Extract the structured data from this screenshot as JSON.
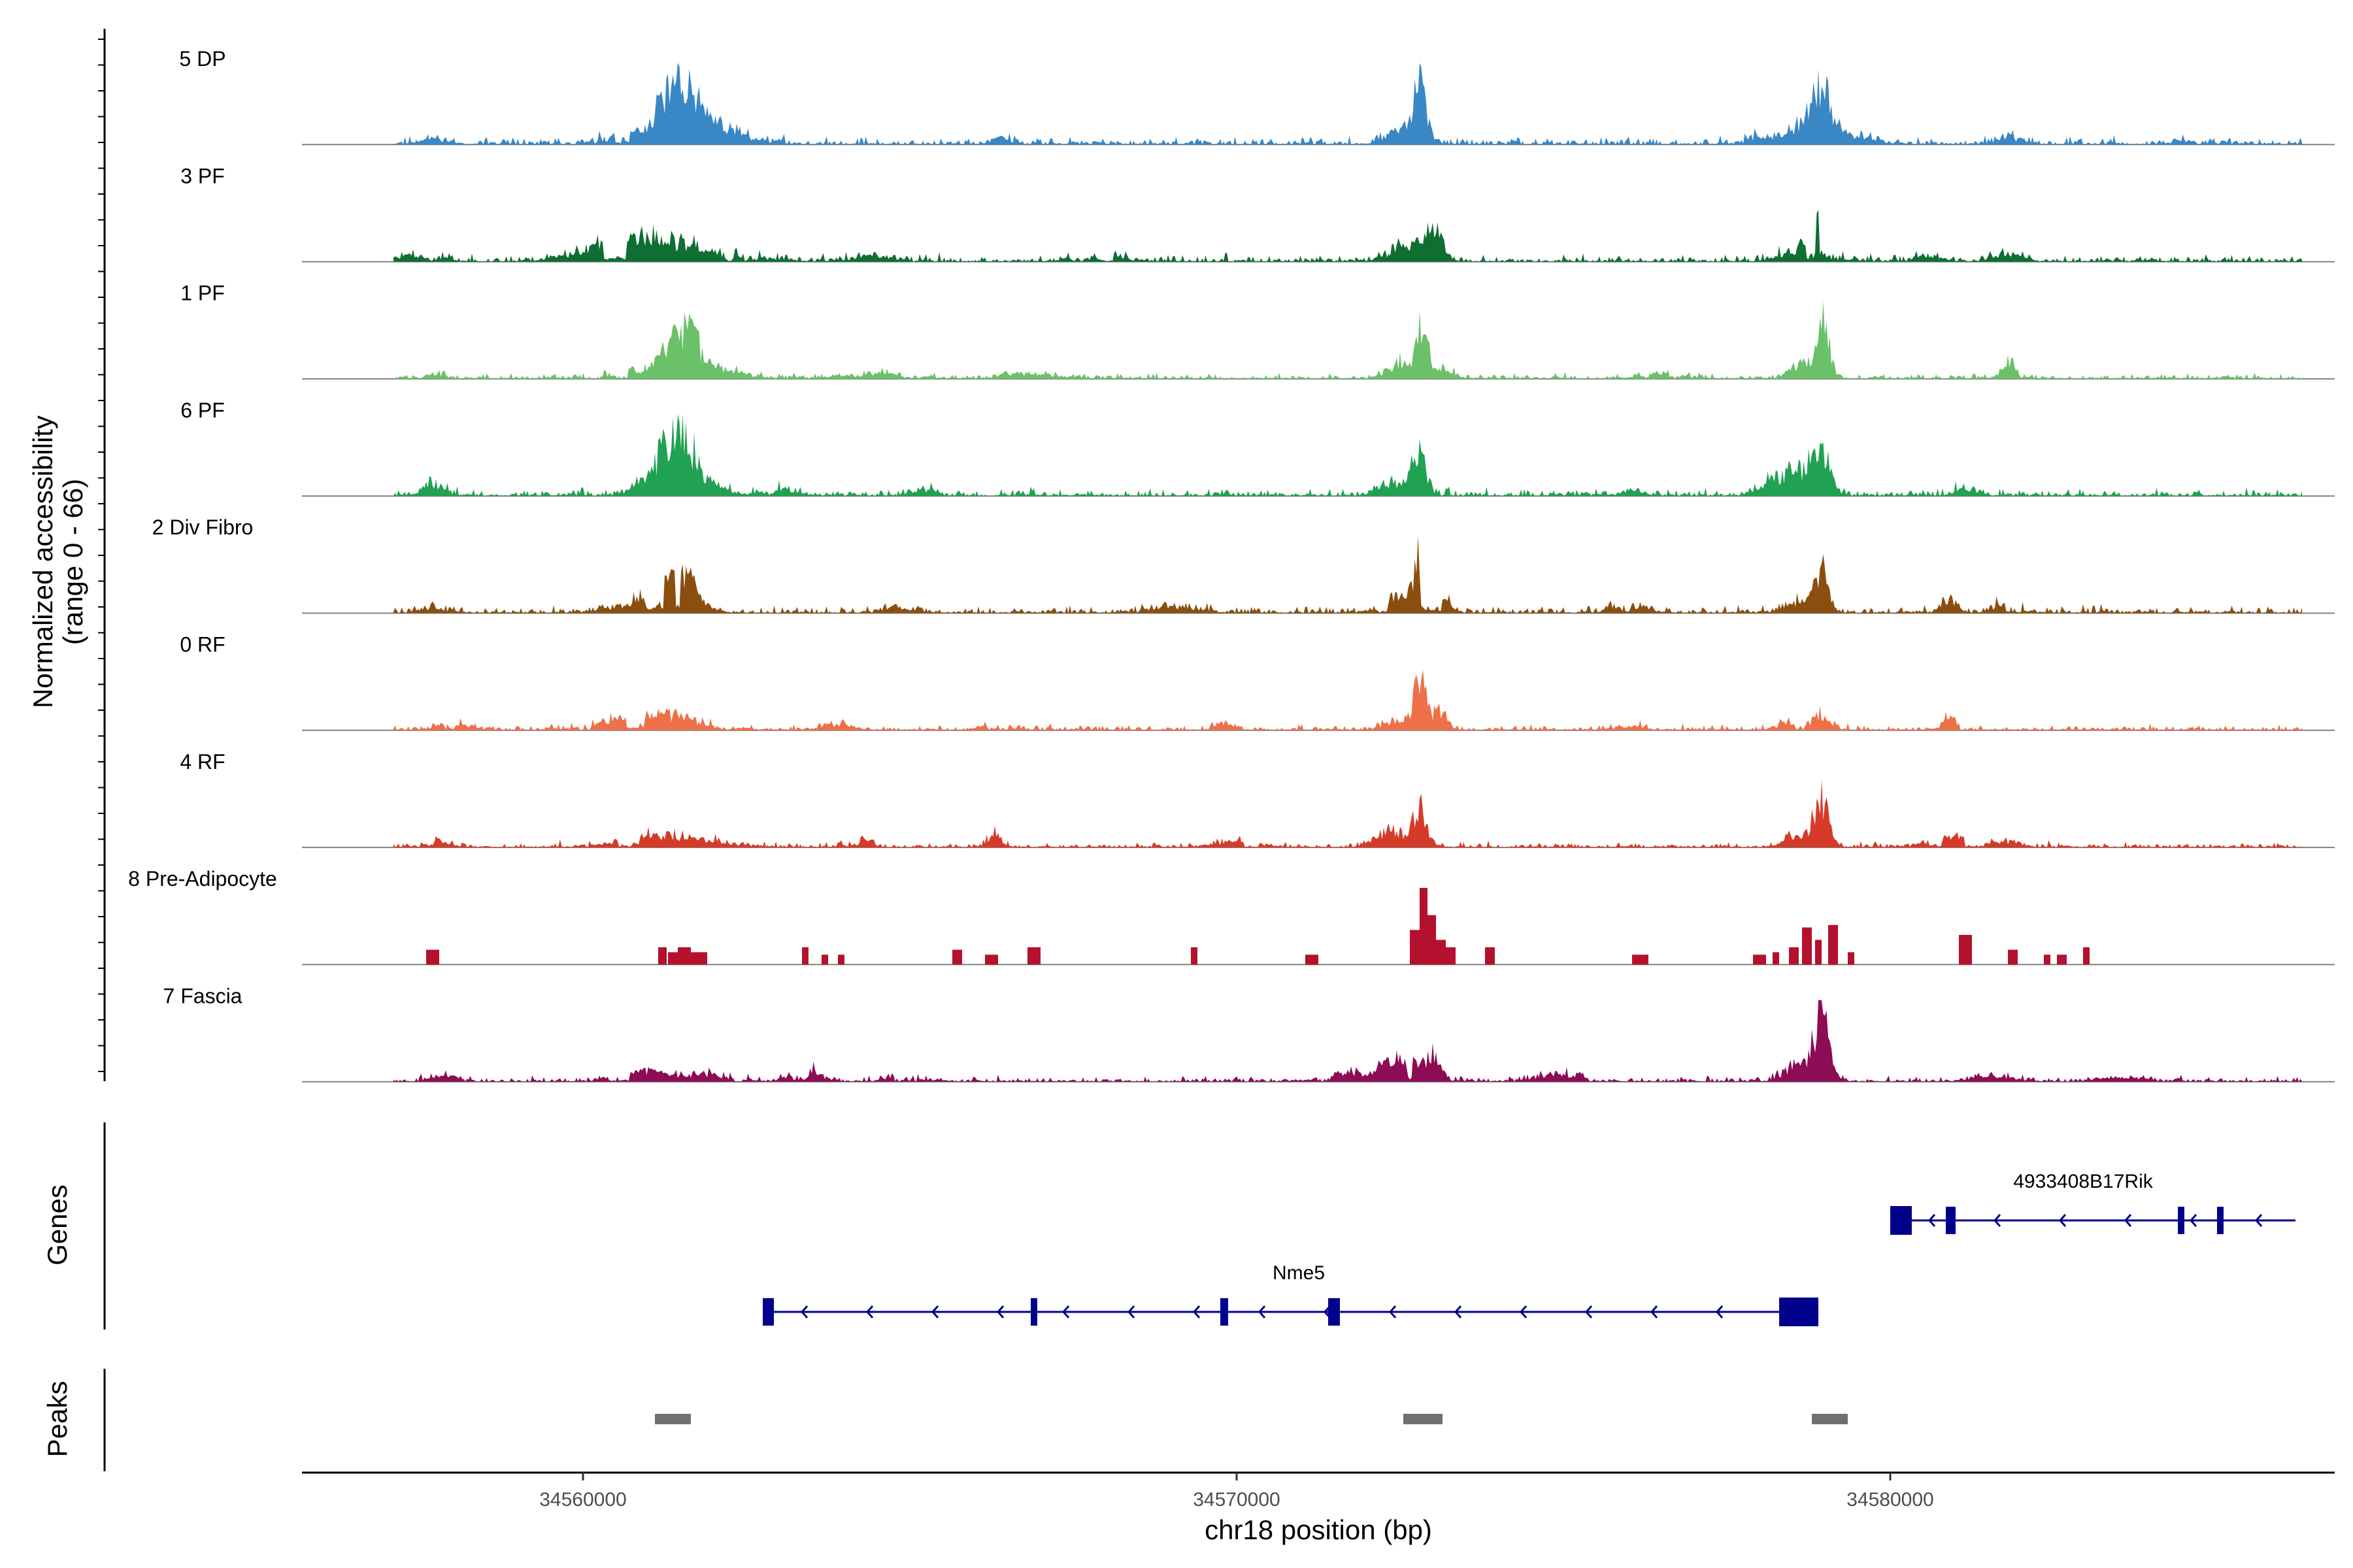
{
  "chart_data": {
    "type": "area",
    "title": "",
    "y_axis_title_line1": "Normalized accessibility",
    "y_axis_title_line2": "(range 0 - 66)",
    "ylim": [
      0,
      66
    ],
    "x_axis_title": "chr18 position (bp)",
    "xlim": [
      34555700,
      34586800
    ],
    "x_ticks": [
      34560000,
      34570000,
      34580000
    ],
    "x_tick_labels": [
      "34560000",
      "34570000",
      "34580000"
    ],
    "genes_track_label": "Genes",
    "peaks_track_label": "Peaks",
    "tracks": [
      {
        "name": "5 DP",
        "color": "#3A87C5",
        "start": 34557100,
        "end": 34586300,
        "noise": 4,
        "seed": 11,
        "peaks": [
          [
            34561450,
            42,
            260
          ],
          [
            34561900,
            14,
            500
          ],
          [
            34560700,
            5,
            300
          ],
          [
            34572800,
            46,
            110
          ],
          [
            34572450,
            9,
            200
          ],
          [
            34578950,
            36,
            150
          ],
          [
            34578650,
            12,
            300
          ],
          [
            34579500,
            6,
            300
          ],
          [
            34566300,
            6,
            180
          ],
          [
            34557700,
            4,
            200
          ],
          [
            34577900,
            5,
            200
          ],
          [
            34581800,
            4,
            200
          ],
          [
            34584500,
            3,
            200
          ]
        ]
      },
      {
        "name": "3 PF",
        "color": "#0F6E32",
        "start": 34557100,
        "end": 34586300,
        "noise": 4,
        "seed": 23,
        "peaks": [
          [
            34561200,
            14,
            800
          ],
          [
            34560500,
            6,
            500
          ],
          [
            34572600,
            12,
            250
          ],
          [
            34573000,
            26,
            130
          ],
          [
            34578950,
            32,
            120
          ],
          [
            34578700,
            10,
            300
          ],
          [
            34557500,
            5,
            300
          ],
          [
            34564500,
            4,
            300
          ],
          [
            34568000,
            3,
            300
          ],
          [
            34581800,
            6,
            200
          ],
          [
            34580600,
            4,
            200
          ]
        ]
      },
      {
        "name": "1 PF",
        "color": "#6BC06A",
        "start": 34557100,
        "end": 34586300,
        "noise": 3,
        "seed": 37,
        "peaks": [
          [
            34561550,
            30,
            220
          ],
          [
            34561200,
            8,
            500
          ],
          [
            34562000,
            6,
            400
          ],
          [
            34572850,
            40,
            90
          ],
          [
            34572500,
            12,
            180
          ],
          [
            34573200,
            8,
            120
          ],
          [
            34578980,
            40,
            90
          ],
          [
            34578700,
            12,
            200
          ],
          [
            34581850,
            12,
            120
          ],
          [
            34564500,
            4,
            500
          ],
          [
            34566700,
            4,
            400
          ],
          [
            34557600,
            4,
            200
          ],
          [
            34576500,
            4,
            300
          ]
        ]
      },
      {
        "name": "6 PF",
        "color": "#21A152",
        "start": 34557100,
        "end": 34586300,
        "noise": 4,
        "seed": 43,
        "peaks": [
          [
            34561450,
            40,
            200
          ],
          [
            34561200,
            16,
            300
          ],
          [
            34561800,
            10,
            300
          ],
          [
            34572800,
            28,
            100
          ],
          [
            34572400,
            10,
            250
          ],
          [
            34578950,
            32,
            130
          ],
          [
            34578600,
            16,
            250
          ],
          [
            34578200,
            8,
            200
          ],
          [
            34557700,
            9,
            150
          ],
          [
            34563000,
            4,
            300
          ],
          [
            34565200,
            5,
            200
          ],
          [
            34581100,
            6,
            200
          ],
          [
            34576000,
            4,
            200
          ]
        ]
      },
      {
        "name": "2 Div Fibro",
        "color": "#8A4F0F",
        "start": 34557100,
        "end": 34586300,
        "noise": 4,
        "seed": 59,
        "peaks": [
          [
            34561450,
            30,
            250
          ],
          [
            34561000,
            8,
            500
          ],
          [
            34572800,
            42,
            90
          ],
          [
            34572450,
            12,
            200
          ],
          [
            34573200,
            10,
            120
          ],
          [
            34578950,
            30,
            110
          ],
          [
            34578600,
            8,
            200
          ],
          [
            34580900,
            12,
            120
          ],
          [
            34581800,
            6,
            200
          ],
          [
            34569000,
            4,
            400
          ],
          [
            34564800,
            4,
            300
          ],
          [
            34557700,
            4,
            200
          ],
          [
            34576000,
            4,
            300
          ]
        ]
      },
      {
        "name": "0 RF",
        "color": "#EE7048",
        "start": 34557100,
        "end": 34586300,
        "noise": 3,
        "seed": 71,
        "peaks": [
          [
            34561100,
            12,
            600
          ],
          [
            34572800,
            46,
            90
          ],
          [
            34573100,
            14,
            120
          ],
          [
            34572400,
            6,
            200
          ],
          [
            34578950,
            12,
            120
          ],
          [
            34578500,
            6,
            200
          ],
          [
            34580900,
            10,
            100
          ],
          [
            34566300,
            6,
            200
          ],
          [
            34569800,
            6,
            150
          ],
          [
            34558000,
            4,
            300
          ],
          [
            34563900,
            4,
            200
          ],
          [
            34576000,
            3,
            200
          ]
        ]
      },
      {
        "name": "4 RF",
        "color": "#D63B2A",
        "start": 34557100,
        "end": 34586300,
        "noise": 3,
        "seed": 83,
        "peaks": [
          [
            34561300,
            9,
            600
          ],
          [
            34572800,
            32,
            110
          ],
          [
            34572350,
            14,
            200
          ],
          [
            34578950,
            34,
            110
          ],
          [
            34578600,
            10,
            200
          ],
          [
            34566300,
            10,
            100
          ],
          [
            34564200,
            8,
            150
          ],
          [
            34557700,
            6,
            200
          ],
          [
            34580900,
            8,
            300
          ],
          [
            34581800,
            4,
            200
          ],
          [
            34570000,
            4,
            300
          ]
        ]
      },
      {
        "name": "8 Pre-Adipocyte",
        "color": "#B3112D",
        "start": 34557100,
        "end": 34586300,
        "noise": 0,
        "seed": 97,
        "sparse": true,
        "blocks": [
          [
            34557600,
            34557800,
            12
          ],
          [
            34561150,
            34561280,
            14
          ],
          [
            34561300,
            34561450,
            10
          ],
          [
            34561450,
            34561650,
            14
          ],
          [
            34561650,
            34561900,
            10
          ],
          [
            34563350,
            34563450,
            14
          ],
          [
            34563650,
            34563750,
            8
          ],
          [
            34563900,
            34564000,
            8
          ],
          [
            34565650,
            34565800,
            12
          ],
          [
            34566150,
            34566350,
            8
          ],
          [
            34566800,
            34567000,
            14
          ],
          [
            34569300,
            34569400,
            14
          ],
          [
            34571050,
            34571250,
            8
          ],
          [
            34572650,
            34572800,
            28
          ],
          [
            34572800,
            34572920,
            62
          ],
          [
            34572920,
            34573050,
            40
          ],
          [
            34573050,
            34573200,
            20
          ],
          [
            34573200,
            34573350,
            14
          ],
          [
            34573800,
            34573950,
            14
          ],
          [
            34576050,
            34576300,
            8
          ],
          [
            34577900,
            34578100,
            8
          ],
          [
            34578200,
            34578300,
            10
          ],
          [
            34578450,
            34578600,
            14
          ],
          [
            34578650,
            34578800,
            30
          ],
          [
            34578850,
            34578950,
            20
          ],
          [
            34579050,
            34579200,
            32
          ],
          [
            34579350,
            34579450,
            10
          ],
          [
            34581050,
            34581250,
            24
          ],
          [
            34581800,
            34581950,
            12
          ],
          [
            34582350,
            34582450,
            8
          ],
          [
            34582550,
            34582700,
            8
          ],
          [
            34582950,
            34583050,
            14
          ]
        ]
      },
      {
        "name": "7 Fascia",
        "color": "#8C0C55",
        "start": 34557100,
        "end": 34586300,
        "noise": 3,
        "seed": 101,
        "peaks": [
          [
            34560900,
            8,
            400
          ],
          [
            34561900,
            5,
            300
          ],
          [
            34563400,
            10,
            200
          ],
          [
            34572500,
            16,
            300
          ],
          [
            34573000,
            14,
            150
          ],
          [
            34571600,
            6,
            300
          ],
          [
            34578950,
            46,
            100
          ],
          [
            34578700,
            16,
            250
          ],
          [
            34575000,
            5,
            400
          ],
          [
            34557900,
            4,
            200
          ],
          [
            34565000,
            5,
            300
          ],
          [
            34581600,
            4,
            300
          ],
          [
            34583500,
            3,
            300
          ]
        ]
      }
    ],
    "genes": [
      {
        "name": "Nme5",
        "strand": "-",
        "color": "#00008B",
        "start": 34562750,
        "end": 34578900,
        "exons": [
          [
            34562750,
            34562920
          ],
          [
            34566850,
            34566950
          ],
          [
            34569750,
            34569870
          ],
          [
            34571400,
            34571580
          ],
          [
            34578300,
            34578900
          ]
        ]
      },
      {
        "name": "4933408B17Rik",
        "strand": "-",
        "color": "#00008B",
        "start": 34580000,
        "end": 34586200,
        "exons": [
          [
            34580000,
            34580330
          ],
          [
            34580850,
            34581000
          ],
          [
            34584400,
            34584480
          ],
          [
            34585000,
            34585080
          ]
        ]
      }
    ],
    "peaks": [
      {
        "start": 34561100,
        "end": 34561650,
        "color": "#707070"
      },
      {
        "start": 34572550,
        "end": 34573150,
        "color": "#707070"
      },
      {
        "start": 34578800,
        "end": 34579350,
        "color": "#707070"
      }
    ]
  }
}
